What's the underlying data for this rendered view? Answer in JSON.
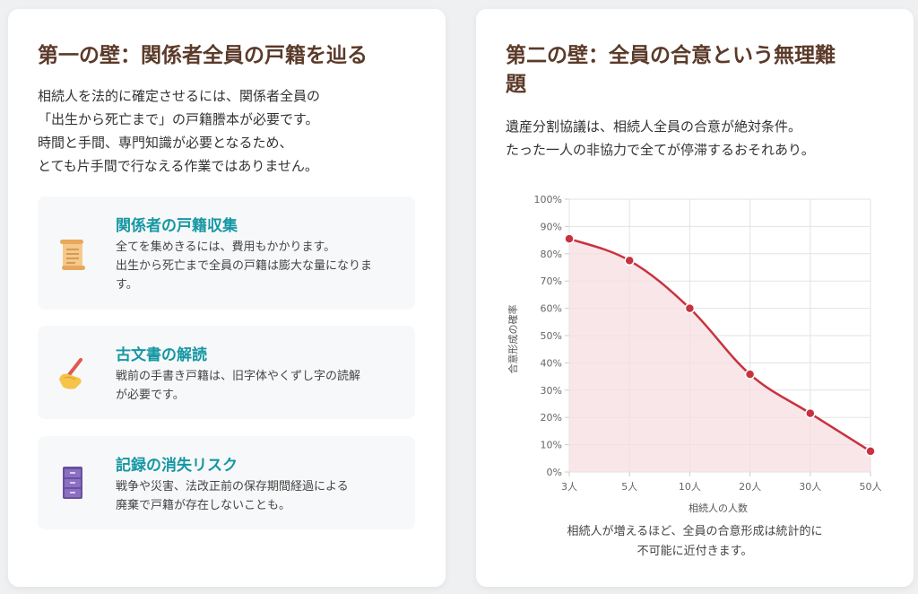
{
  "left_card": {
    "title": "第一の壁：関係者全員の戸籍を辿る",
    "description_lines": [
      "相続人を法的に確定させるには、関係者全員の",
      "「出生から死亡まで」の戸籍謄本が必要です。",
      "時間と手間、専門知識が必要となるため、",
      "とても片手間で行なえる作業ではありません。"
    ],
    "features": [
      {
        "icon": "scroll-icon",
        "title": "関係者の戸籍収集",
        "body_lines": [
          "全てを集めきるには、費用もかかります。",
          "出生から死亡まで全員の戸籍は膨大な量になりま",
          "す。"
        ]
      },
      {
        "icon": "writing-hand-icon",
        "title": "古文書の解読",
        "body_lines": [
          "戦前の手書き戸籍は、旧字体やくずし字の読解",
          "が必要です。"
        ]
      },
      {
        "icon": "file-cabinet-icon",
        "title": "記録の消失リスク",
        "body_lines": [
          "戦争や災害、法改正前の保存期間経過による",
          "廃棄で戸籍が存在しないことも。"
        ]
      }
    ]
  },
  "right_card": {
    "title_lines": [
      "第二の壁：全員の合意という無理難",
      "題"
    ],
    "description_lines": [
      "遺産分割協議は、相続人全員の合意が絶対条件。",
      "たった一人の非協力で全てが停滞するおそれあり。"
    ],
    "caption_lines": [
      "相続人が増えるほど、全員の合意形成は統計的に",
      "不可能に近付きます。"
    ]
  },
  "chart_data": {
    "type": "area",
    "title": "",
    "xlabel": "相続人の人数",
    "ylabel": "合意形成の確率",
    "categories": [
      "3人",
      "5人",
      "10人",
      "20人",
      "30人",
      "50人"
    ],
    "series": [
      {
        "values": [
          85.5,
          77.5,
          60,
          35.8,
          21.5,
          7.6
        ]
      }
    ],
    "ylim": [
      0,
      100
    ],
    "y_ticks": [
      "0%",
      "10%",
      "20%",
      "30%",
      "40%",
      "50%",
      "60%",
      "70%",
      "80%",
      "90%",
      "100%"
    ],
    "grid": true,
    "colors": {
      "line": "#c8323f",
      "fill": "#f6dde0",
      "point": "#c8323f",
      "grid": "#e3e3e3"
    }
  }
}
